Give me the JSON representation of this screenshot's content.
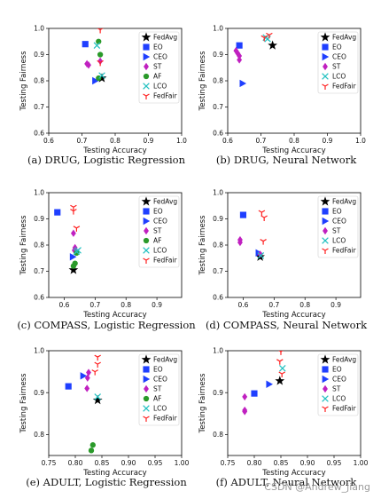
{
  "figure": {
    "watermark": "CSDN @Andrew_jiang"
  },
  "colors": {
    "FedAvg": "#000000",
    "EO": "#1f3fff",
    "CEO": "#1f3fff",
    "ST": "#c020c0",
    "AF": "#2a9a2a",
    "LCO": "#20c0c0",
    "FedFair": "#ff2020"
  },
  "chart_data": [
    {
      "type": "scatter",
      "caption": "(a)  DRUG, Logistic Regression",
      "xlabel": "Testing Accuracy",
      "ylabel": "Testing Fairness",
      "xlim": [
        0.6,
        1.0
      ],
      "ylim": [
        0.6,
        1.0
      ],
      "xticks": [
        "0.6",
        "0.7",
        "0.8",
        "0.9",
        "1.0"
      ],
      "yticks": [
        "0.6",
        "0.7",
        "0.8",
        "0.9",
        "1.0"
      ],
      "legend": [
        "FedAvg",
        "EO",
        "CEO",
        "ST",
        "AF",
        "LCO",
        "FedFair"
      ],
      "legend_position": "upper-right",
      "series": [
        {
          "name": "FedAvg",
          "marker": "star",
          "points": [
            [
              0.76,
              0.81
            ]
          ]
        },
        {
          "name": "EO",
          "marker": "square",
          "points": [
            [
              0.71,
              0.94
            ]
          ]
        },
        {
          "name": "CEO",
          "marker": "triangle",
          "points": [
            [
              0.74,
              0.8
            ]
          ]
        },
        {
          "name": "ST",
          "marker": "diamond",
          "points": [
            [
              0.715,
              0.865
            ],
            [
              0.72,
              0.86
            ],
            [
              0.755,
              0.875
            ]
          ]
        },
        {
          "name": "AF",
          "marker": "circle",
          "points": [
            [
              0.75,
              0.95
            ],
            [
              0.755,
              0.9
            ],
            [
              0.75,
              0.81
            ]
          ]
        },
        {
          "name": "LCO",
          "marker": "x",
          "points": [
            [
              0.745,
              0.935
            ],
            [
              0.76,
              0.82
            ]
          ]
        },
        {
          "name": "FedFair",
          "marker": "tri",
          "points": [
            [
              0.755,
              0.995
            ],
            [
              0.755,
              0.87
            ]
          ]
        }
      ]
    },
    {
      "type": "scatter",
      "caption": "(b)  DRUG, Neural Network",
      "xlabel": "Testing Accuracy",
      "ylabel": "Testing Fairness",
      "xlim": [
        0.6,
        1.0
      ],
      "ylim": [
        0.6,
        1.0
      ],
      "xticks": [
        "0.6",
        "0.7",
        "0.8",
        "0.9",
        "1.0"
      ],
      "yticks": [
        "0.6",
        "0.7",
        "0.8",
        "0.9",
        "1.0"
      ],
      "legend": [
        "FedAvg",
        "EO",
        "CEO",
        "ST",
        "LCO",
        "FedFair"
      ],
      "legend_position": "upper-right",
      "series": [
        {
          "name": "FedAvg",
          "marker": "star",
          "points": [
            [
              0.735,
              0.935
            ]
          ]
        },
        {
          "name": "EO",
          "marker": "square",
          "points": [
            [
              0.635,
              0.935
            ]
          ]
        },
        {
          "name": "CEO",
          "marker": "triangle",
          "points": [
            [
              0.645,
              0.79
            ]
          ]
        },
        {
          "name": "ST",
          "marker": "diamond",
          "points": [
            [
              0.625,
              0.915
            ],
            [
              0.63,
              0.905
            ],
            [
              0.635,
              0.895
            ],
            [
              0.635,
              0.88
            ]
          ]
        },
        {
          "name": "LCO",
          "marker": "x",
          "points": [
            [
              0.715,
              0.965
            ],
            [
              0.72,
              0.96
            ]
          ]
        },
        {
          "name": "FedFair",
          "marker": "tri",
          "points": [
            [
              0.71,
              0.965
            ],
            [
              0.725,
              0.975
            ]
          ]
        }
      ]
    },
    {
      "type": "scatter",
      "caption": "(c)  COMPASS, Logistic Regression",
      "xlabel": "Testing Accuracy",
      "ylabel": "Testing Fairness",
      "xlim": [
        0.55,
        0.98
      ],
      "ylim": [
        0.6,
        1.0
      ],
      "xticks": [
        "0.6",
        "0.7",
        "0.8",
        "0.9"
      ],
      "yticks": [
        "0.6",
        "0.7",
        "0.8",
        "0.9",
        "1.0"
      ],
      "legend": [
        "FedAvg",
        "EO",
        "CEO",
        "ST",
        "AF",
        "LCO",
        "FedFair"
      ],
      "legend_position": "upper-right",
      "series": [
        {
          "name": "FedAvg",
          "marker": "star",
          "points": [
            [
              0.63,
              0.705
            ]
          ]
        },
        {
          "name": "EO",
          "marker": "square",
          "points": [
            [
              0.578,
              0.925
            ]
          ]
        },
        {
          "name": "CEO",
          "marker": "triangle",
          "points": [
            [
              0.628,
              0.755
            ]
          ]
        },
        {
          "name": "ST",
          "marker": "diamond",
          "points": [
            [
              0.63,
              0.845
            ],
            [
              0.635,
              0.79
            ],
            [
              0.633,
              0.78
            ]
          ]
        },
        {
          "name": "AF",
          "marker": "circle",
          "points": [
            [
              0.64,
              0.77
            ],
            [
              0.635,
              0.73
            ],
            [
              0.63,
              0.72
            ]
          ]
        },
        {
          "name": "LCO",
          "marker": "x",
          "points": [
            [
              0.645,
              0.78
            ],
            [
              0.64,
              0.775
            ]
          ]
        },
        {
          "name": "FedFair",
          "marker": "tri",
          "points": [
            [
              0.63,
              0.945
            ],
            [
              0.63,
              0.93
            ],
            [
              0.64,
              0.865
            ]
          ]
        }
      ]
    },
    {
      "type": "scatter",
      "caption": "(d)  COMPASS, Neural Network",
      "xlabel": "Testing Accuracy",
      "ylabel": "Testing Fairness",
      "xlim": [
        0.55,
        0.98
      ],
      "ylim": [
        0.6,
        1.0
      ],
      "xticks": [
        "0.6",
        "0.7",
        "0.8",
        "0.9"
      ],
      "yticks": [
        "0.6",
        "0.7",
        "0.8",
        "0.9",
        "1.0"
      ],
      "legend": [
        "FedAvg",
        "EO",
        "CEO",
        "ST",
        "LCO",
        "FedFair"
      ],
      "legend_position": "upper-right",
      "series": [
        {
          "name": "FedAvg",
          "marker": "star",
          "points": [
            [
              0.655,
              0.755
            ]
          ]
        },
        {
          "name": "EO",
          "marker": "square",
          "points": [
            [
              0.6,
              0.915
            ]
          ]
        },
        {
          "name": "CEO",
          "marker": "triangle",
          "points": [
            [
              0.65,
              0.77
            ]
          ]
        },
        {
          "name": "ST",
          "marker": "diamond",
          "points": [
            [
              0.59,
              0.82
            ],
            [
              0.59,
              0.81
            ],
            [
              0.655,
              0.765
            ]
          ]
        },
        {
          "name": "LCO",
          "marker": "x",
          "points": [
            [
              0.657,
              0.76
            ]
          ]
        },
        {
          "name": "FedFair",
          "marker": "tri",
          "points": [
            [
              0.66,
              0.925
            ],
            [
              0.668,
              0.905
            ],
            [
              0.665,
              0.815
            ]
          ]
        }
      ]
    },
    {
      "type": "scatter",
      "caption": "(e)  ADULT, Logistic Regression",
      "xlabel": "Testing Accuracy",
      "ylabel": "Testing Fairness",
      "xlim": [
        0.75,
        1.0
      ],
      "ylim": [
        0.75,
        1.0
      ],
      "xticks": [
        "0.75",
        "0.80",
        "0.85",
        "0.90",
        "0.95",
        "1.00"
      ],
      "yticks": [
        "0.8",
        "0.9",
        "1.0"
      ],
      "legend": [
        "FedAvg",
        "EO",
        "CEO",
        "ST",
        "AF",
        "LCO",
        "FedFair"
      ],
      "legend_position": "upper-right",
      "series": [
        {
          "name": "FedAvg",
          "marker": "star",
          "points": [
            [
              0.842,
              0.882
            ]
          ]
        },
        {
          "name": "EO",
          "marker": "square",
          "points": [
            [
              0.787,
              0.915
            ]
          ]
        },
        {
          "name": "CEO",
          "marker": "triangle",
          "points": [
            [
              0.815,
              0.94
            ]
          ]
        },
        {
          "name": "ST",
          "marker": "diamond",
          "points": [
            [
              0.825,
              0.948
            ],
            [
              0.823,
              0.935
            ],
            [
              0.822,
              0.91
            ]
          ]
        },
        {
          "name": "AF",
          "marker": "circle",
          "points": [
            [
              0.833,
              0.775
            ],
            [
              0.83,
              0.762
            ]
          ]
        },
        {
          "name": "LCO",
          "marker": "x",
          "points": [
            [
              0.842,
              0.89
            ]
          ]
        },
        {
          "name": "FedFair",
          "marker": "tri",
          "points": [
            [
              0.842,
              0.985
            ],
            [
              0.842,
              0.968
            ],
            [
              0.837,
              0.95
            ]
          ]
        }
      ]
    },
    {
      "type": "scatter",
      "caption": "(f)  ADULT, Neural Network",
      "xlabel": "Testing Accuracy",
      "ylabel": "Testing Fairness",
      "xlim": [
        0.75,
        1.0
      ],
      "ylim": [
        0.75,
        1.0
      ],
      "xticks": [
        "0.75",
        "0.80",
        "0.85",
        "0.90",
        "0.95",
        "1.00"
      ],
      "yticks": [
        "0.8",
        "0.9",
        "1.0"
      ],
      "legend": [
        "FedAvg",
        "EO",
        "CEO",
        "ST",
        "LCO",
        "FedFair"
      ],
      "legend_position": "upper-right",
      "series": [
        {
          "name": "FedAvg",
          "marker": "star",
          "points": [
            [
              0.848,
              0.928
            ]
          ]
        },
        {
          "name": "EO",
          "marker": "square",
          "points": [
            [
              0.8,
              0.898
            ]
          ]
        },
        {
          "name": "CEO",
          "marker": "triangle",
          "points": [
            [
              0.828,
              0.92
            ]
          ]
        },
        {
          "name": "ST",
          "marker": "diamond",
          "points": [
            [
              0.782,
              0.89
            ],
            [
              0.782,
              0.858
            ],
            [
              0.782,
              0.855
            ]
          ]
        },
        {
          "name": "LCO",
          "marker": "x",
          "points": [
            [
              0.853,
              0.958
            ]
          ]
        },
        {
          "name": "FedFair",
          "marker": "tri",
          "points": [
            [
              0.85,
              0.998
            ],
            [
              0.848,
              0.975
            ],
            [
              0.852,
              0.945
            ]
          ]
        }
      ]
    }
  ]
}
